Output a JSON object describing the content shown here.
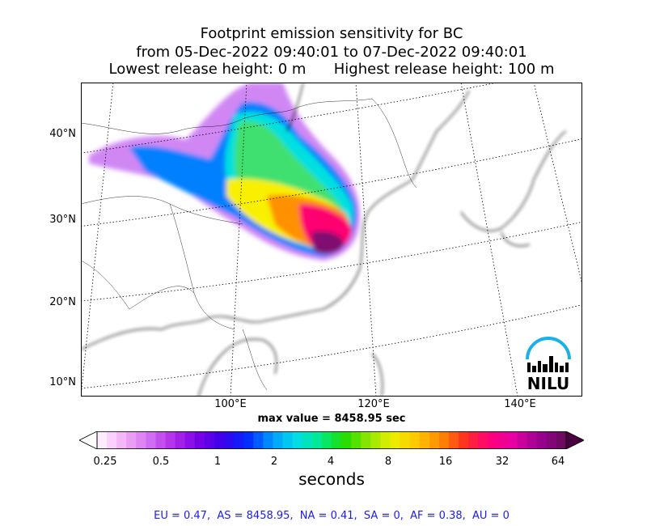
{
  "title": {
    "line1": "Footprint emission sensitivity for BC",
    "line2": "from 05-Dec-2022 09:40:01 to 07-Dec-2022 09:40:01",
    "line3": "Lowest release height: 0 m      Highest release height: 100 m"
  },
  "map": {
    "lat_labels": [
      "40°N",
      "30°N",
      "20°N",
      "10°N"
    ],
    "lon_labels": [
      "100°E",
      "120°E",
      "140°E"
    ],
    "logo_text": "NILU"
  },
  "max_value": "max value = 8458.95 sec",
  "colorbar": {
    "ticks": [
      "0.25",
      "0.5",
      "1",
      "2",
      "4",
      "8",
      "16",
      "32",
      "64"
    ],
    "label": "seconds"
  },
  "footer": "EU = 0.47,  AS = 8458.95,  NA = 0.41,  SA = 0,  AF = 0.38,  AU = 0"
}
